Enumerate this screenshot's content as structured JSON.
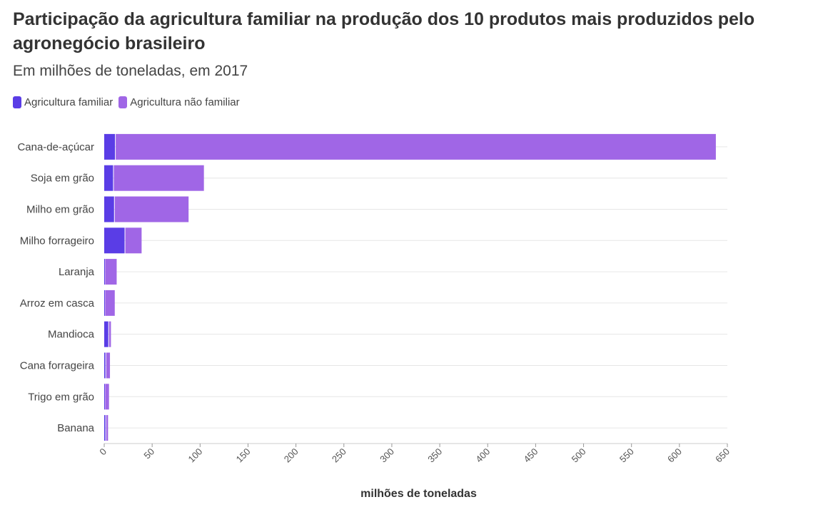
{
  "chart_data": {
    "type": "bar",
    "orientation": "horizontal",
    "stacked": true,
    "title": "Participação da agricultura familiar na produção dos 10 produtos mais produzidos pelo agronegócio brasileiro",
    "subtitle": "Em milhões de toneladas, em 2017",
    "xlabel": "milhões de toneladas",
    "xlim": [
      0,
      650
    ],
    "xticks": [
      0,
      50,
      100,
      150,
      200,
      250,
      300,
      350,
      400,
      450,
      500,
      550,
      600,
      650
    ],
    "legend_position": "top-left",
    "grid": true,
    "categories": [
      "Cana-de-açúcar",
      "Soja em grão",
      "Milho em grão",
      "Milho forrageiro",
      "Laranja",
      "Arroz em casca",
      "Mandioca",
      "Cana forrageira",
      "Trigo em grão",
      "Banana"
    ],
    "series": [
      {
        "name": "Agricultura familiar",
        "color": "#5a3de6",
        "values": [
          12,
          10,
          11,
          22,
          1,
          1,
          5,
          2,
          1,
          2
        ]
      },
      {
        "name": "Agricultura não familiar",
        "color": "#a066e6",
        "values": [
          626,
          94,
          77,
          17,
          12,
          10,
          2,
          4,
          4,
          2
        ]
      }
    ]
  }
}
